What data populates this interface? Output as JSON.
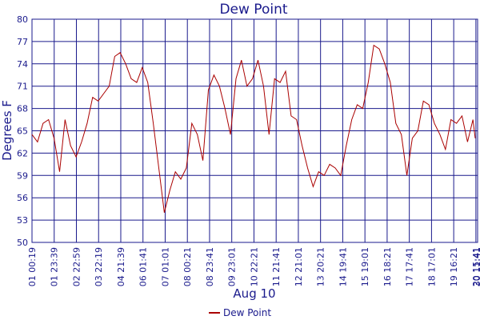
{
  "chart_data": {
    "type": "line",
    "title": "Dew Point",
    "xlabel": "Aug 10",
    "ylabel": "Degrees F",
    "ylim": [
      50,
      80
    ],
    "yticks": [
      50,
      53,
      56,
      59,
      62,
      65,
      68,
      71,
      74,
      77,
      80
    ],
    "xticks": [
      "01 00:19",
      "01 23:39",
      "02 22:59",
      "03 22:19",
      "04 21:39",
      "06 01:41",
      "07 01:01",
      "08 00:21",
      "08 23:41",
      "09 23:01",
      "10 22:21",
      "11 21:41",
      "12 21:01",
      "13 20:21",
      "14 19:41",
      "15 19:01",
      "16 18:21",
      "17 17:41",
      "18 17:01",
      "19 16:21",
      "20 15:41",
      "30 11:41"
    ],
    "grid": true,
    "legend": "bottom-center",
    "colors": {
      "line": "#aa0000",
      "grid": "#1a1a8c",
      "text": "#1a1a8c"
    },
    "series": [
      {
        "name": "Dew Point",
        "x": [
          0.0,
          0.25,
          0.5,
          0.75,
          1.0,
          1.25,
          1.5,
          1.75,
          2.0,
          2.25,
          2.5,
          2.75,
          3.0,
          3.25,
          3.5,
          3.75,
          4.0,
          4.25,
          4.5,
          4.75,
          5.0,
          5.25,
          5.5,
          5.75,
          6.0,
          6.25,
          6.5,
          6.75,
          7.0,
          7.25,
          7.5,
          7.75,
          8.0,
          8.25,
          8.5,
          8.75,
          9.0,
          9.25,
          9.5,
          9.75,
          10.0,
          10.25,
          10.5,
          10.75,
          11.0,
          11.25,
          11.5,
          11.75,
          12.0,
          12.25,
          12.5,
          12.75,
          13.0,
          13.25,
          13.5,
          13.75,
          14.0,
          14.25,
          14.5,
          14.75,
          15.0,
          15.25,
          15.5,
          15.75,
          16.0,
          16.25,
          16.5,
          16.75,
          17.0,
          17.25,
          17.5,
          17.75,
          18.0,
          18.25,
          18.5,
          18.75,
          19.0,
          19.25,
          19.5,
          19.75,
          20.0,
          20.1
        ],
        "y": [
          64.5,
          63.5,
          66.0,
          66.5,
          64.0,
          59.5,
          66.5,
          63.0,
          61.5,
          63.5,
          66.0,
          69.5,
          69.0,
          70.0,
          71.0,
          75.0,
          75.5,
          74.0,
          72.0,
          71.5,
          73.5,
          71.5,
          66.0,
          60.0,
          54.0,
          57.0,
          59.5,
          58.5,
          60.0,
          66.0,
          64.5,
          61.0,
          70.5,
          72.5,
          71.0,
          68.0,
          64.5,
          72.0,
          74.5,
          71.0,
          72.0,
          74.5,
          71.0,
          64.5,
          72.0,
          71.5,
          73.0,
          67.0,
          66.5,
          63.0,
          60.0,
          57.5,
          59.5,
          59.0,
          60.5,
          60.0,
          59.0,
          63.0,
          66.5,
          68.5,
          68.0,
          71.5,
          76.5,
          76.0,
          74.0,
          71.5,
          66.0,
          64.5,
          59.0,
          64.0,
          65.0,
          69.0,
          68.5,
          66.0,
          64.5,
          62.5,
          66.5,
          66.0,
          67.0,
          63.5,
          66.5,
          64.0
        ]
      }
    ]
  }
}
